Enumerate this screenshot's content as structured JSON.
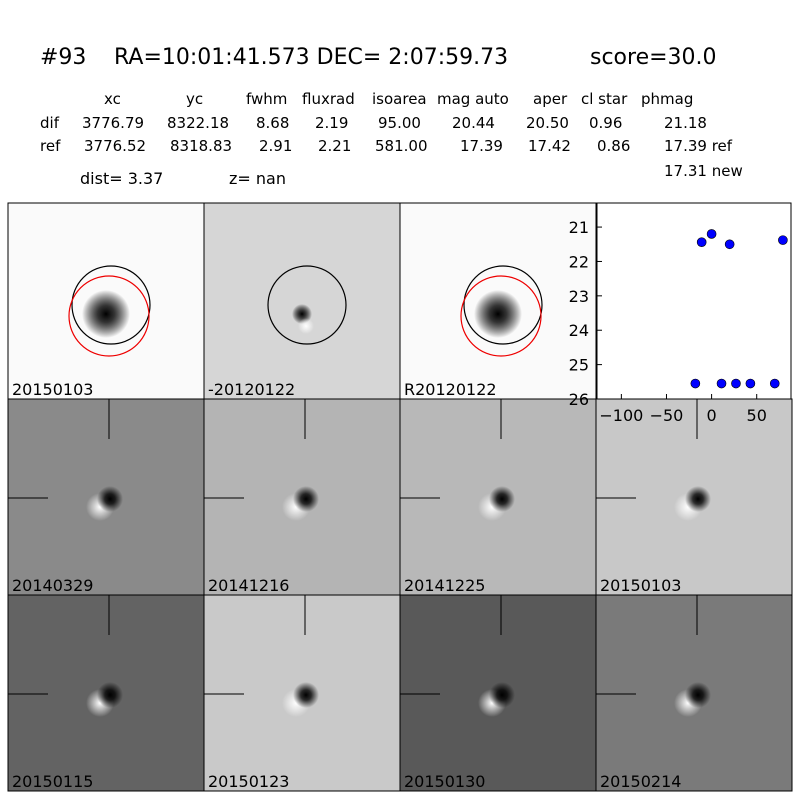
{
  "header": {
    "id": "#93",
    "coords": "RA=10:01:41.573 DEC= 2:07:59.73",
    "score": "score=30.0"
  },
  "table": {
    "columns": [
      "xc",
      "yc",
      "fwhm",
      "fluxrad",
      "isoarea",
      "mag auto",
      "aper",
      "cl star",
      "phmag"
    ],
    "rows": [
      [
        "dif",
        "3776.79",
        "8322.18",
        "8.68",
        "2.19",
        "95.00",
        "20.44",
        "20.50",
        "0.96",
        "21.18"
      ],
      [
        "ref",
        "3776.52",
        "8318.83",
        "2.91",
        "2.21",
        "581.00",
        "17.39",
        "17.42",
        "0.86",
        "17.39 ref"
      ]
    ],
    "extra": "17.31 new"
  },
  "dist": "dist=  3.37",
  "z": "z=   nan",
  "panels": [
    {
      "label": "20150103"
    },
    {
      "label": "-20120122"
    },
    {
      "label": "R20120122"
    },
    {
      "label": "20140329"
    },
    {
      "label": "20141216"
    },
    {
      "label": "20141225"
    },
    {
      "label": "20150103",
      "color": "#ff0000"
    },
    {
      "label": "20150115"
    },
    {
      "label": "20150123"
    },
    {
      "label": "20150130"
    },
    {
      "label": "20150214"
    }
  ],
  "chart_data": {
    "type": "scatter",
    "color": "#0000ff",
    "x": [
      -11,
      0,
      20,
      79,
      -18,
      11,
      27,
      43,
      70
    ],
    "values": [
      21.44,
      21.2,
      21.5,
      21.38,
      25.55,
      25.55,
      25.55,
      25.55,
      25.55
    ],
    "xlim": [
      -127,
      88
    ],
    "ylim": [
      20.3,
      26
    ],
    "y_inverted": true,
    "xticks": [
      {
        "value": -100,
        "label": "−100"
      },
      {
        "value": -50,
        "label": "−50"
      },
      0,
      50
    ],
    "yticks": [
      21,
      22,
      23,
      24,
      25,
      26
    ]
  }
}
